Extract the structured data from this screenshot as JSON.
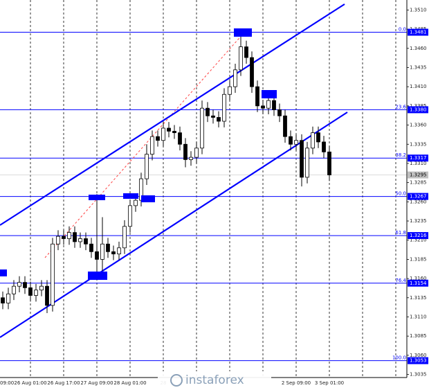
{
  "chart_data": {
    "type": "candlestick",
    "watermark": "instaforex",
    "categories": [
      "09:00",
      null,
      null,
      null,
      null,
      "26 Aug 01:00",
      null,
      null,
      null,
      null,
      null,
      "26 Aug 17:00",
      null,
      null,
      null,
      null,
      null,
      "27 Aug 09:00",
      null,
      null,
      null,
      null,
      null,
      "28 Aug 01:00",
      null,
      null,
      null,
      null,
      null,
      "28",
      null,
      null,
      null,
      null,
      null,
      null,
      null,
      null,
      null,
      null,
      null,
      null,
      null,
      null,
      null,
      null,
      null,
      null,
      null,
      null,
      null,
      null,
      null,
      "2 Sep 09:00",
      null,
      null,
      null,
      null,
      null,
      "3 Sep 01:00"
    ],
    "open": [
      1.3135,
      1.3128,
      1.314,
      1.315,
      1.3155,
      1.3148,
      1.3138,
      1.3145,
      1.315,
      1.3125,
      1.3205,
      1.3215,
      1.3212,
      1.322,
      1.3208,
      1.3212,
      1.3205,
      1.3195,
      1.3185,
      1.3205,
      1.3195,
      1.3192,
      1.32,
      1.3228,
      1.3255,
      1.3262,
      1.329,
      1.3322,
      1.3345,
      1.334,
      1.3356,
      1.3352,
      1.335,
      1.3335,
      1.3315,
      1.3318,
      1.333,
      1.3382,
      1.3372,
      1.337,
      1.3365,
      1.34,
      1.341,
      1.3432,
      1.3462,
      1.3448,
      1.341,
      1.3385,
      1.3382,
      1.3392,
      1.338,
      1.3372,
      1.3345,
      1.3335,
      1.334,
      1.3292,
      1.333,
      1.335,
      1.3338,
      1.3325
    ],
    "high": [
      1.3143,
      1.3148,
      1.3158,
      1.3163,
      1.3163,
      1.3156,
      1.3153,
      1.3158,
      1.3158,
      1.3213,
      1.3223,
      1.3223,
      1.3228,
      1.3228,
      1.322,
      1.322,
      1.3213,
      1.327,
      1.324,
      1.3213,
      1.3203,
      1.3208,
      1.3236,
      1.3263,
      1.327,
      1.3298,
      1.3335,
      1.3353,
      1.3353,
      1.3364,
      1.3364,
      1.336,
      1.3358,
      1.3343,
      1.3326,
      1.3338,
      1.3392,
      1.339,
      1.338,
      1.3378,
      1.3408,
      1.3418,
      1.344,
      1.3478,
      1.347,
      1.3456,
      1.3418,
      1.3393,
      1.34,
      1.34,
      1.3388,
      1.338,
      1.3353,
      1.3348,
      1.3348,
      1.3338,
      1.3358,
      1.3358,
      1.3346,
      1.3333
    ],
    "low": [
      1.312,
      1.312,
      1.3132,
      1.3142,
      1.314,
      1.313,
      1.313,
      1.3137,
      1.3115,
      1.3117,
      1.3197,
      1.3204,
      1.3204,
      1.32,
      1.32,
      1.3197,
      1.3187,
      1.3168,
      1.317,
      1.3187,
      1.3184,
      1.3184,
      1.3192,
      1.322,
      1.3247,
      1.3254,
      1.3282,
      1.3314,
      1.3332,
      1.3332,
      1.3344,
      1.3342,
      1.3327,
      1.3305,
      1.3307,
      1.331,
      1.3322,
      1.3364,
      1.3362,
      1.3357,
      1.3357,
      1.3392,
      1.3402,
      1.3424,
      1.344,
      1.3402,
      1.3377,
      1.3374,
      1.3374,
      1.3372,
      1.3364,
      1.3337,
      1.3327,
      1.3327,
      1.328,
      1.3284,
      1.3322,
      1.333,
      1.3317,
      1.3287
    ],
    "close": [
      1.3128,
      1.314,
      1.315,
      1.3155,
      1.3148,
      1.3138,
      1.3145,
      1.315,
      1.3125,
      1.3205,
      1.3215,
      1.3212,
      1.322,
      1.3208,
      1.3212,
      1.3205,
      1.3195,
      1.3185,
      1.3205,
      1.3195,
      1.3192,
      1.32,
      1.3228,
      1.3255,
      1.3262,
      1.329,
      1.3322,
      1.3345,
      1.334,
      1.3356,
      1.3352,
      1.335,
      1.3335,
      1.3315,
      1.3318,
      1.333,
      1.3382,
      1.3372,
      1.337,
      1.3365,
      1.34,
      1.341,
      1.3432,
      1.3462,
      1.3448,
      1.341,
      1.3385,
      1.3382,
      1.3392,
      1.338,
      1.3372,
      1.3345,
      1.3335,
      1.334,
      1.3292,
      1.333,
      1.335,
      1.3338,
      1.3325,
      1.3295
    ],
    "color": "#000000",
    "ylim": [
      1.3031,
      1.3523
    ],
    "yticks": [
      {
        "value": 1.351,
        "label": "1.3510"
      },
      1.3485,
      {
        "value": 1.346,
        "label": "1.3460"
      },
      1.3435,
      {
        "value": 1.341,
        "label": "1.3410"
      },
      1.3385,
      {
        "value": 1.336,
        "label": "1.3360"
      },
      1.3335,
      {
        "value": 1.331,
        "label": "1.3310"
      },
      1.3285,
      {
        "value": 1.326,
        "label": "1.3260"
      },
      1.3235,
      {
        "value": 1.321,
        "label": "1.3210"
      },
      1.3185,
      {
        "value": 1.316,
        "label": "1.3160"
      },
      1.3135,
      {
        "value": 1.311,
        "label": "1.3110"
      },
      1.3085,
      {
        "value": 1.306,
        "label": "1.3060"
      },
      1.3035
    ],
    "levels": [
      {
        "ratio": "0.0",
        "price": 1.3481
      },
      {
        "ratio": "23.6",
        "price": {
          "value": 1.338,
          "label": "1.3380"
        }
      },
      {
        "ratio": "38.2",
        "price": 1.3317
      },
      {
        "ratio": "50.0",
        "price": 1.3267
      },
      {
        "ratio": "61.8",
        "price": 1.3216
      },
      {
        "ratio": "76.4",
        "price": 1.3154
      },
      {
        "ratio": "100.0",
        "price": 1.3053
      }
    ],
    "level_color": "#0000ff",
    "current_price": 1.3295
  }
}
